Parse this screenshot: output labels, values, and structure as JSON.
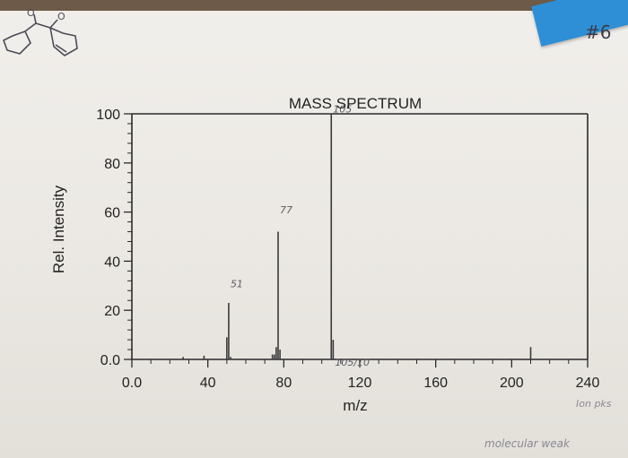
{
  "page": {
    "handwritten_tag": "#6",
    "handwritten_note_right": "Ion pks",
    "handwritten_note_bottom": "molecular weak"
  },
  "colors": {
    "axis": "#2a2a2a",
    "peak": "#3a3a3a",
    "ink": "#5d5b66",
    "paper": "#eeece8"
  },
  "chart_data": {
    "type": "bar",
    "title": "MASS SPECTRUM",
    "xlabel": "m/z",
    "ylabel": "Rel. Intensity",
    "xlim": [
      0,
      240
    ],
    "ylim": [
      0,
      100
    ],
    "x_ticks": [
      "0.0",
      "40",
      "80",
      "120",
      "160",
      "200",
      "240"
    ],
    "x_tick_values": [
      0,
      40,
      80,
      120,
      160,
      200,
      240
    ],
    "y_ticks": [
      "0.0",
      "20",
      "40",
      "60",
      "80",
      "100"
    ],
    "y_tick_values": [
      0,
      20,
      40,
      60,
      80,
      100
    ],
    "grid": false,
    "peaks": [
      {
        "mz": 27,
        "intensity": 1
      },
      {
        "mz": 38,
        "intensity": 1.5
      },
      {
        "mz": 50,
        "intensity": 9
      },
      {
        "mz": 51,
        "intensity": 23
      },
      {
        "mz": 52,
        "intensity": 1
      },
      {
        "mz": 74,
        "intensity": 2
      },
      {
        "mz": 75,
        "intensity": 2
      },
      {
        "mz": 76,
        "intensity": 5
      },
      {
        "mz": 77,
        "intensity": 52
      },
      {
        "mz": 78,
        "intensity": 4
      },
      {
        "mz": 105,
        "intensity": 100
      },
      {
        "mz": 106,
        "intensity": 8
      },
      {
        "mz": 210,
        "intensity": 5
      }
    ],
    "annotations": [
      {
        "text": "51",
        "mz": 51,
        "intensity": 28
      },
      {
        "text": "77",
        "mz": 77,
        "intensity": 58
      },
      {
        "text": "105",
        "mz": 105,
        "intensity": 99
      },
      {
        "text": "105/10",
        "mz": 106,
        "intensity": -4
      }
    ]
  }
}
